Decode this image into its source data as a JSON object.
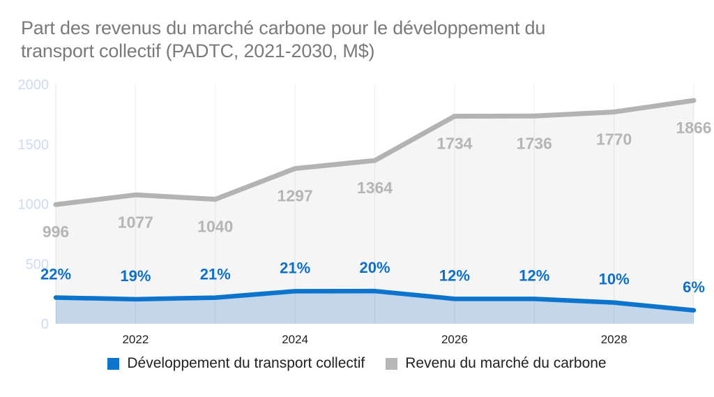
{
  "header": {
    "title_line1": "Part des revenus du marché carbone pour le développement du",
    "title_line2": "transport collectif (PADTC, 2021-2030, M$)"
  },
  "colors": {
    "background": "#ffffff",
    "title": "#7a7a7a",
    "axis_y_label": "#cfdaf2",
    "axis_x_label": "#1f1f1f",
    "axis_line": "rgba(0,0,0,0.10)",
    "gridline": "rgba(0,0,0,0.07)",
    "legend_text": "#212121"
  },
  "chart_data": {
    "type": "area",
    "title": "Part des revenus du marché carbone pour le développement du transport collectif (PADTC, 2021-2030, M$)",
    "x": [
      2021,
      2022,
      2023,
      2024,
      2025,
      2026,
      2027,
      2028,
      2029
    ],
    "x_tick_labels": [
      "",
      "2022",
      "",
      "2024",
      "",
      "2026",
      "",
      "2028",
      ""
    ],
    "ylim": [
      0,
      2000
    ],
    "y_ticks": [
      0,
      500,
      1000,
      1500,
      2000
    ],
    "grid": "vertical-only",
    "legend_position": "bottom",
    "series": [
      {
        "name": "Revenu du marché du carbone",
        "role": "background-area",
        "color": "#b3b3b3",
        "fill": "#f5f5f5",
        "label_color": "#b5b5b5",
        "values": [
          996,
          1077,
          1040,
          1297,
          1364,
          1734,
          1736,
          1770,
          1866
        ],
        "labels": [
          "996",
          "1077",
          "1040",
          "1297",
          "1364",
          "1734",
          "1736",
          "1770",
          "1866"
        ]
      },
      {
        "name": "Développement du transport collectif",
        "role": "foreground-area",
        "color": "#0d74ce",
        "fill": "#c3d6ea",
        "label_color": "#0d6fc6",
        "values": [
          219,
          205,
          218,
          272,
          273,
          208,
          208,
          177,
          112
        ],
        "labels": [
          "22%",
          "19%",
          "21%",
          "21%",
          "20%",
          "12%",
          "12%",
          "10%",
          "6%"
        ]
      }
    ],
    "legend_items": [
      {
        "label": "Développement du transport collectif",
        "color": "#0d74ce"
      },
      {
        "label": "Revenu du marché du carbone",
        "color": "#b7b7b7"
      }
    ]
  }
}
